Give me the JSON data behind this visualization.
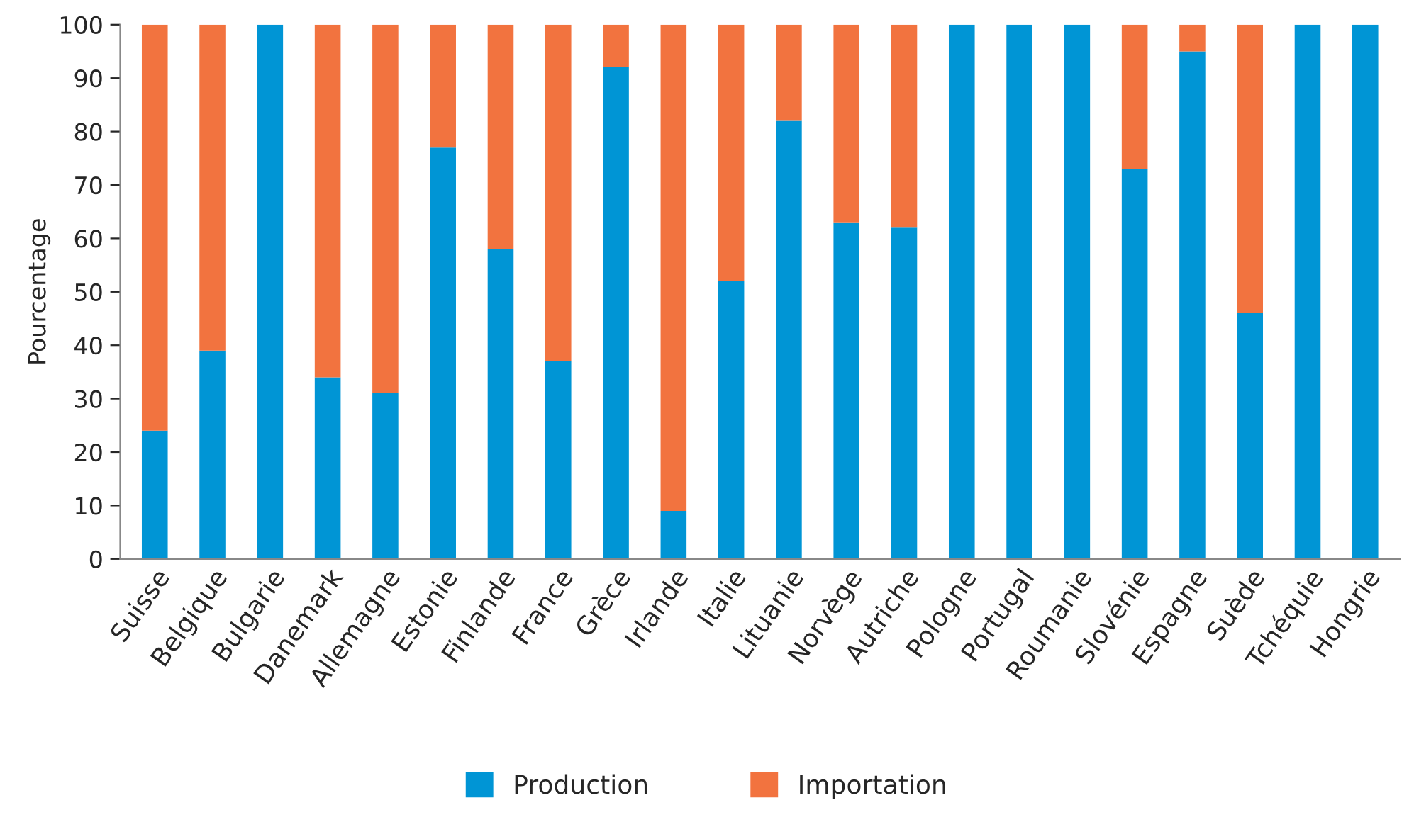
{
  "chart_data": {
    "type": "bar",
    "ylabel": "Pourcentage",
    "categories": [
      "Suisse",
      "Belgique",
      "Bulgarie",
      "Danemark",
      "Allemagne",
      "Estonie",
      "Finlande",
      "France",
      "Grèce",
      "Irlande",
      "Italie",
      "Lituanie",
      "Norvège",
      "Autriche",
      "Pologne",
      "Portugal",
      "Roumanie",
      "Slovénie",
      "Espagne",
      "Suède",
      "Tchéquie",
      "Hongrie"
    ],
    "series": [
      {
        "name": "Production",
        "color": "#0095d5",
        "values": [
          24,
          39,
          100,
          34,
          31,
          77,
          58,
          37,
          92,
          9,
          52,
          82,
          63,
          62,
          100,
          100,
          100,
          73,
          95,
          46,
          100,
          100
        ]
      },
      {
        "name": "Importation",
        "color": "#f2733f",
        "values": [
          76,
          61,
          0,
          66,
          69,
          23,
          42,
          63,
          8,
          91,
          48,
          18,
          37,
          38,
          0,
          0,
          0,
          27,
          5,
          54,
          0,
          0
        ]
      }
    ],
    "stacked": true,
    "ylim": [
      0,
      100
    ],
    "yticks": [
      0,
      10,
      20,
      30,
      40,
      50,
      60,
      70,
      80,
      90,
      100
    ],
    "grid": false,
    "legend": "bottom"
  }
}
